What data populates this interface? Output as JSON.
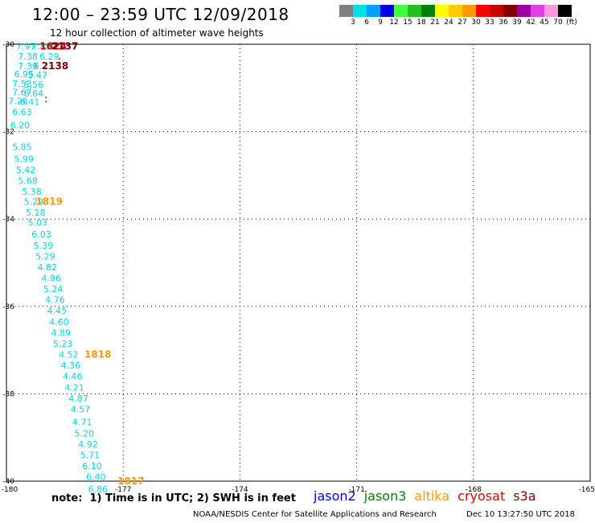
{
  "header": {
    "title": "12:00 – 23:59 UTC 12/09/2018",
    "subtitle": "12 hour collection of altimeter wave heights"
  },
  "colorbar": {
    "colors": [
      "#808080",
      "#00e0e0",
      "#00a0ff",
      "#0000e0",
      "#40ff40",
      "#20c020",
      "#008000",
      "#ffff00",
      "#ffcc00",
      "#ff9900",
      "#ff0000",
      "#c80000",
      "#800000",
      "#a000a0",
      "#e040e0",
      "#ff99dd",
      "#000000"
    ],
    "labels": [
      "3",
      "6",
      "9",
      "12",
      "15",
      "18",
      "21",
      "24",
      "27",
      "30",
      "33",
      "36",
      "39",
      "42",
      "45",
      "70",
      "(ft)"
    ]
  },
  "map": {
    "lon_range": [
      -180,
      -165
    ],
    "lat_range": [
      -40,
      -30
    ],
    "lon_ticks": [
      "-180",
      "-177",
      "-174",
      "-171",
      "-168",
      "-165"
    ],
    "lon_values": [
      -180,
      -177,
      -174,
      -171,
      -168,
      -165
    ],
    "lat_ticks": [
      "-30",
      "-32",
      "-34",
      "-36",
      "-38",
      "-40"
    ],
    "lat_values": [
      -30,
      -32,
      -34,
      -36,
      -38,
      -40
    ],
    "observations": [
      {
        "lon": -179.5,
        "lat": -30.05,
        "swh": "7.97",
        "color": "#1fb8e8"
      },
      {
        "lon": -179.1,
        "lat": -30.05,
        "swh": "7.88",
        "color": "#1fb8e8"
      },
      {
        "lon": -179.45,
        "lat": -30.28,
        "swh": "7.38",
        "color": "#00d8e8"
      },
      {
        "lon": -178.9,
        "lat": -30.28,
        "swh": "6.29",
        "color": "#00d8e8"
      },
      {
        "lon": -179.45,
        "lat": -30.5,
        "swh": "7.39",
        "color": "#1fb8e8"
      },
      {
        "lon": -179.05,
        "lat": -30.5,
        "swh": "6.73",
        "color": "#00d8e8"
      },
      {
        "lon": -179.55,
        "lat": -30.68,
        "swh": "6.95",
        "color": "#00d8e8"
      },
      {
        "lon": -179.2,
        "lat": -30.7,
        "swh": "5.47",
        "color": "#00d8e8"
      },
      {
        "lon": -179.6,
        "lat": -30.9,
        "swh": "7.53",
        "color": "#00d8e8"
      },
      {
        "lon": -179.3,
        "lat": -30.92,
        "swh": "5.56",
        "color": "#00d8e8"
      },
      {
        "lon": -179.6,
        "lat": -31.1,
        "swh": "7.67",
        "color": "#00d8e8"
      },
      {
        "lon": -179.3,
        "lat": -31.12,
        "swh": "6.64",
        "color": "#00d8e8"
      },
      {
        "lon": -179.7,
        "lat": -31.3,
        "swh": "7.26",
        "color": "#00d8e8"
      },
      {
        "lon": -179.4,
        "lat": -31.32,
        "swh": "6.41",
        "color": "#00d8e8"
      },
      {
        "lon": -179.6,
        "lat": -31.55,
        "swh": "6.63",
        "color": "#00d8e8"
      },
      {
        "lon": -179.65,
        "lat": -31.85,
        "swh": "6.20",
        "color": "#00d8e8"
      },
      {
        "lon": -179.6,
        "lat": -32.35,
        "swh": "5.85",
        "color": "#00d8e8"
      },
      {
        "lon": -179.55,
        "lat": -32.62,
        "swh": "5.99",
        "color": "#00d8e8"
      },
      {
        "lon": -179.5,
        "lat": -32.87,
        "swh": "5.42",
        "color": "#00d8e8"
      },
      {
        "lon": -179.45,
        "lat": -33.12,
        "swh": "5.68",
        "color": "#00d8e8"
      },
      {
        "lon": -179.35,
        "lat": -33.37,
        "swh": "5.38",
        "color": "#00d8e8"
      },
      {
        "lon": -179.3,
        "lat": -33.6,
        "swh": "5.29",
        "color": "#00d8e8"
      },
      {
        "lon": -179.25,
        "lat": -33.85,
        "swh": "5.18",
        "color": "#00d8e8"
      },
      {
        "lon": -179.2,
        "lat": -34.08,
        "swh": "5.03",
        "color": "#00d8e8"
      },
      {
        "lon": -179.1,
        "lat": -34.35,
        "swh": "6.03",
        "color": "#00d8e8"
      },
      {
        "lon": -179.05,
        "lat": -34.6,
        "swh": "5.39",
        "color": "#00d8e8"
      },
      {
        "lon": -179.0,
        "lat": -34.85,
        "swh": "5.29",
        "color": "#00d8e8"
      },
      {
        "lon": -178.95,
        "lat": -35.1,
        "swh": "4.82",
        "color": "#00d8e8"
      },
      {
        "lon": -178.85,
        "lat": -35.35,
        "swh": "4.96",
        "color": "#00d8e8"
      },
      {
        "lon": -178.8,
        "lat": -35.6,
        "swh": "5.24",
        "color": "#00d8e8"
      },
      {
        "lon": -178.75,
        "lat": -35.85,
        "swh": "4.76",
        "color": "#00d8e8"
      },
      {
        "lon": -178.7,
        "lat": -36.1,
        "swh": "4.45",
        "color": "#00d8e8"
      },
      {
        "lon": -178.65,
        "lat": -36.35,
        "swh": "4.60",
        "color": "#00d8e8"
      },
      {
        "lon": -178.6,
        "lat": -36.6,
        "swh": "4.89",
        "color": "#00d8e8"
      },
      {
        "lon": -178.55,
        "lat": -36.85,
        "swh": "5.23",
        "color": "#00d8e8"
      },
      {
        "lon": -178.4,
        "lat": -37.1,
        "swh": "4.52",
        "color": "#00d8e8"
      },
      {
        "lon": -178.35,
        "lat": -37.35,
        "swh": "4.36",
        "color": "#00d8e8"
      },
      {
        "lon": -178.3,
        "lat": -37.6,
        "swh": "4.46",
        "color": "#00d8e8"
      },
      {
        "lon": -178.25,
        "lat": -37.85,
        "swh": "4.21",
        "color": "#00d8e8"
      },
      {
        "lon": -178.15,
        "lat": -38.1,
        "swh": "4.87",
        "color": "#00d8e8"
      },
      {
        "lon": -178.1,
        "lat": -38.35,
        "swh": "4.57",
        "color": "#00d8e8"
      },
      {
        "lon": -178.05,
        "lat": -38.65,
        "swh": "4.71",
        "color": "#00d8e8"
      },
      {
        "lon": -178.0,
        "lat": -38.9,
        "swh": "5.20",
        "color": "#00d8e8"
      },
      {
        "lon": -177.9,
        "lat": -39.15,
        "swh": "4.92",
        "color": "#00d8e8"
      },
      {
        "lon": -177.85,
        "lat": -39.4,
        "swh": "5.71",
        "color": "#00d8e8"
      },
      {
        "lon": -177.8,
        "lat": -39.65,
        "swh": "6.10",
        "color": "#00d8e8"
      },
      {
        "lon": -177.7,
        "lat": -39.9,
        "swh": "6.40",
        "color": "#00d8e8"
      },
      {
        "lon": -177.65,
        "lat": -40.18,
        "swh": "6.86",
        "color": "#00d8e8"
      }
    ],
    "track_labels": [
      {
        "lon": -178.8,
        "lat": -30.05,
        "text": "1624",
        "color": "#c80000"
      },
      {
        "lon": -178.5,
        "lat": -30.05,
        "text": "2137",
        "color": "#800000"
      },
      {
        "lon": -178.75,
        "lat": -30.5,
        "text": "2138",
        "color": "#800000"
      },
      {
        "lon": -178.9,
        "lat": -33.6,
        "text": "1819",
        "color": "#ff9900"
      },
      {
        "lon": -177.65,
        "lat": -37.1,
        "text": "1818",
        "color": "#ff9900"
      },
      {
        "lon": -176.8,
        "lat": -40.0,
        "text": "1817",
        "color": "#ff9900"
      }
    ],
    "dots": [
      {
        "lon": -178.65,
        "lat": -30.32
      },
      {
        "lon": -178.65,
        "lat": -30.4
      },
      {
        "lon": -179.0,
        "lat": -31.2
      },
      {
        "lon": -179.0,
        "lat": -31.3
      }
    ]
  },
  "footer": {
    "note": "note:  1) Time is in UTC; 2) SWH is in feet",
    "credit": "NOAA/NESDIS Center for Satellite Applications and Research",
    "timestamp": "Dec 10 13:27:50 UTC 2018"
  },
  "legend": {
    "items": [
      {
        "name": "jason2",
        "color": "#0000e0"
      },
      {
        "name": "jason3",
        "color": "#008000"
      },
      {
        "name": "altika",
        "color": "#ff9900"
      },
      {
        "name": "cryosat",
        "color": "#e00000"
      },
      {
        "name": "s3a",
        "color": "#800000"
      }
    ]
  }
}
